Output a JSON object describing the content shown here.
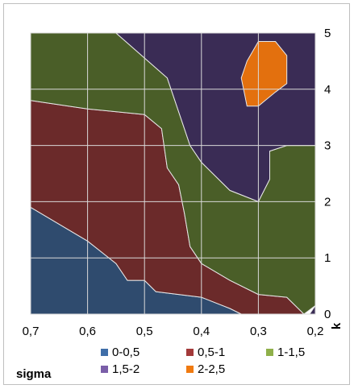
{
  "chart_data": {
    "type": "contour",
    "x_axis": {
      "label": "sigma",
      "ticks": [
        "0,7",
        "0,6",
        "0,5",
        "0,4",
        "0,3",
        "0,2"
      ],
      "values": [
        0.7,
        0.6,
        0.5,
        0.4,
        0.3,
        0.2
      ],
      "range": [
        0.7,
        0.2
      ],
      "reversed": true
    },
    "y_axis": {
      "label": "k",
      "ticks": [
        "0",
        "1",
        "2",
        "3",
        "4",
        "5"
      ],
      "values": [
        0,
        1,
        2,
        3,
        4,
        5
      ],
      "range": [
        0,
        5
      ],
      "position": "right"
    },
    "grid": true,
    "legend_position": "bottom",
    "bands": [
      {
        "name": "0-0,5",
        "color": "#2f4b6e",
        "regions": [
          [
            [
              0.7,
              0
            ],
            [
              0.7,
              1.9
            ],
            [
              0.6,
              1.3
            ],
            [
              0.55,
              0.9
            ],
            [
              0.53,
              0.6
            ],
            [
              0.5,
              0.6
            ],
            [
              0.48,
              0.4
            ],
            [
              0.4,
              0.3
            ],
            [
              0.35,
              0.1
            ],
            [
              0.33,
              0
            ]
          ]
        ]
      },
      {
        "name": "0,5-1",
        "color": "#6b2a2a",
        "regions": [
          [
            [
              0.7,
              1.9
            ],
            [
              0.7,
              3.8
            ],
            [
              0.6,
              3.65
            ],
            [
              0.5,
              3.55
            ],
            [
              0.47,
              3.3
            ],
            [
              0.46,
              2.6
            ],
            [
              0.44,
              2.3
            ],
            [
              0.43,
              1.8
            ],
            [
              0.42,
              1.2
            ],
            [
              0.4,
              0.9
            ],
            [
              0.35,
              0.6
            ],
            [
              0.3,
              0.35
            ],
            [
              0.25,
              0.3
            ],
            [
              0.22,
              0
            ],
            [
              0.33,
              0
            ],
            [
              0.35,
              0.1
            ],
            [
              0.4,
              0.3
            ],
            [
              0.48,
              0.4
            ],
            [
              0.5,
              0.6
            ],
            [
              0.53,
              0.6
            ],
            [
              0.55,
              0.9
            ],
            [
              0.6,
              1.3
            ]
          ]
        ]
      },
      {
        "name": "1-1,5",
        "color": "#4a5e28",
        "regions": [
          [
            [
              0.7,
              3.8
            ],
            [
              0.7,
              5
            ],
            [
              0.55,
              5
            ],
            [
              0.46,
              4.2
            ],
            [
              0.42,
              3.0
            ],
            [
              0.4,
              2.7
            ],
            [
              0.35,
              2.2
            ],
            [
              0.3,
              2.0
            ],
            [
              0.28,
              2.4
            ],
            [
              0.28,
              2.9
            ],
            [
              0.25,
              3.0
            ],
            [
              0.2,
              3.0
            ],
            [
              0.2,
              0.15
            ],
            [
              0.22,
              0
            ],
            [
              0.25,
              0.3
            ],
            [
              0.3,
              0.35
            ],
            [
              0.35,
              0.6
            ],
            [
              0.4,
              0.9
            ],
            [
              0.42,
              1.2
            ],
            [
              0.43,
              1.8
            ],
            [
              0.44,
              2.3
            ],
            [
              0.46,
              2.6
            ],
            [
              0.47,
              3.3
            ],
            [
              0.5,
              3.55
            ],
            [
              0.6,
              3.65
            ]
          ]
        ]
      },
      {
        "name": "1,5-2",
        "color": "#3a2c55",
        "regions": [
          [
            [
              0.55,
              5
            ],
            [
              0.2,
              5
            ],
            [
              0.2,
              3.0
            ],
            [
              0.25,
              3.0
            ],
            [
              0.28,
              2.9
            ],
            [
              0.28,
              2.4
            ],
            [
              0.3,
              2.0
            ],
            [
              0.35,
              2.2
            ],
            [
              0.4,
              2.7
            ],
            [
              0.42,
              3.0
            ],
            [
              0.46,
              4.2
            ]
          ],
          [
            [
              0.2,
              0.15
            ],
            [
              0.2,
              0
            ],
            [
              0.21,
              0
            ],
            [
              0.2,
              0.15
            ]
          ]
        ]
      },
      {
        "name": "2-2,5",
        "color": "#e3700e",
        "regions": [
          [
            [
              0.32,
              4.5
            ],
            [
              0.3,
              4.85
            ],
            [
              0.27,
              4.85
            ],
            [
              0.25,
              4.6
            ],
            [
              0.25,
              4.1
            ],
            [
              0.27,
              3.95
            ],
            [
              0.3,
              3.7
            ],
            [
              0.32,
              3.7
            ],
            [
              0.33,
              4.2
            ]
          ]
        ]
      }
    ],
    "legend": [
      {
        "label": "0-0,5",
        "color": "#3f6ea8"
      },
      {
        "label": "0,5-1",
        "color": "#a33a3a"
      },
      {
        "label": "1-1,5",
        "color": "#8fb04a"
      },
      {
        "label": "1,5-2",
        "color": "#7a5ea8"
      },
      {
        "label": "2-2,5",
        "color": "#f07a10"
      }
    ]
  }
}
